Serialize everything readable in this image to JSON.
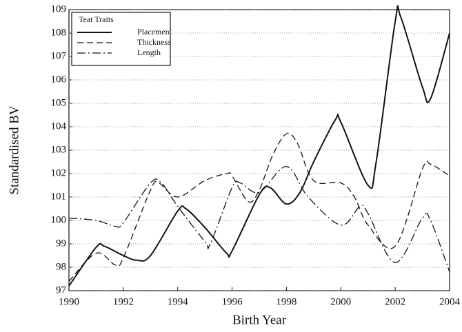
{
  "chart_data": {
    "type": "line",
    "xlabel": "Birth Year",
    "ylabel": "Standardised BV",
    "legend_title": "Teat Traits",
    "legend": "upper left",
    "grid": true,
    "xlim": [
      1990,
      2004
    ],
    "xticks": [
      1990,
      1992,
      1994,
      1996,
      1998,
      2000,
      2002,
      2004
    ],
    "ylim": [
      97,
      109
    ],
    "yticks": [
      97,
      98,
      99,
      100,
      101,
      102,
      103,
      104,
      105,
      106,
      107,
      108,
      109
    ],
    "series": [
      {
        "name": "Placement",
        "color": "#111111",
        "style": "solid",
        "x": [
          1990,
          1991,
          1991.3,
          1992,
          1992.5,
          1993,
          1994,
          1994.3,
          1995,
          1995.8,
          1996,
          1997,
          1997.4,
          1998,
          1998.5,
          1999,
          1999.8,
          2000,
          2001,
          2001.3,
          2002,
          2002.2,
          2003,
          2003.3,
          2004
        ],
        "values": [
          97.2,
          98.85,
          98.9,
          98.5,
          98.3,
          98.5,
          100.4,
          100.5,
          99.7,
          98.6,
          98.7,
          101.1,
          101.4,
          100.7,
          101.2,
          102.5,
          104.3,
          104.2,
          101.5,
          102.5,
          108.5,
          108.7,
          105.7,
          105.2,
          108
        ]
      },
      {
        "name": "Thickness",
        "color": "#111111",
        "style": "dashed",
        "x": [
          1990,
          1991,
          1991.7,
          1992,
          1993,
          1993.3,
          1994,
          1995,
          1995.8,
          1996,
          1996.6,
          1997,
          1997.5,
          1998,
          1998.4,
          1999,
          2000,
          2000.5,
          2001,
          2002,
          2003,
          2003.3,
          2004
        ],
        "values": [
          97.4,
          98.6,
          98.1,
          98.4,
          101.3,
          101.6,
          101.0,
          101.7,
          102.0,
          101.9,
          100.8,
          101.3,
          102.8,
          103.7,
          103.3,
          101.7,
          101.6,
          101.0,
          99.8,
          98.9,
          102.2,
          102.4,
          101.9
        ]
      },
      {
        "name": "Length",
        "color": "#111111",
        "style": "dashdot",
        "x": [
          1990,
          1991,
          1991.7,
          1992,
          1993,
          1993.4,
          1994,
          1995,
          1995.2,
          1996,
          1996.3,
          1997,
          1998,
          1998.8,
          2000,
          2000.7,
          2001,
          2002,
          2003,
          2003.3,
          2004
        ],
        "values": [
          100.1,
          100.0,
          99.75,
          99.9,
          101.6,
          101.6,
          100.6,
          99.1,
          99.0,
          101.4,
          101.6,
          101.2,
          102.3,
          101.0,
          99.8,
          100.6,
          100.3,
          98.2,
          100.1,
          100.0,
          97.8
        ]
      }
    ]
  }
}
